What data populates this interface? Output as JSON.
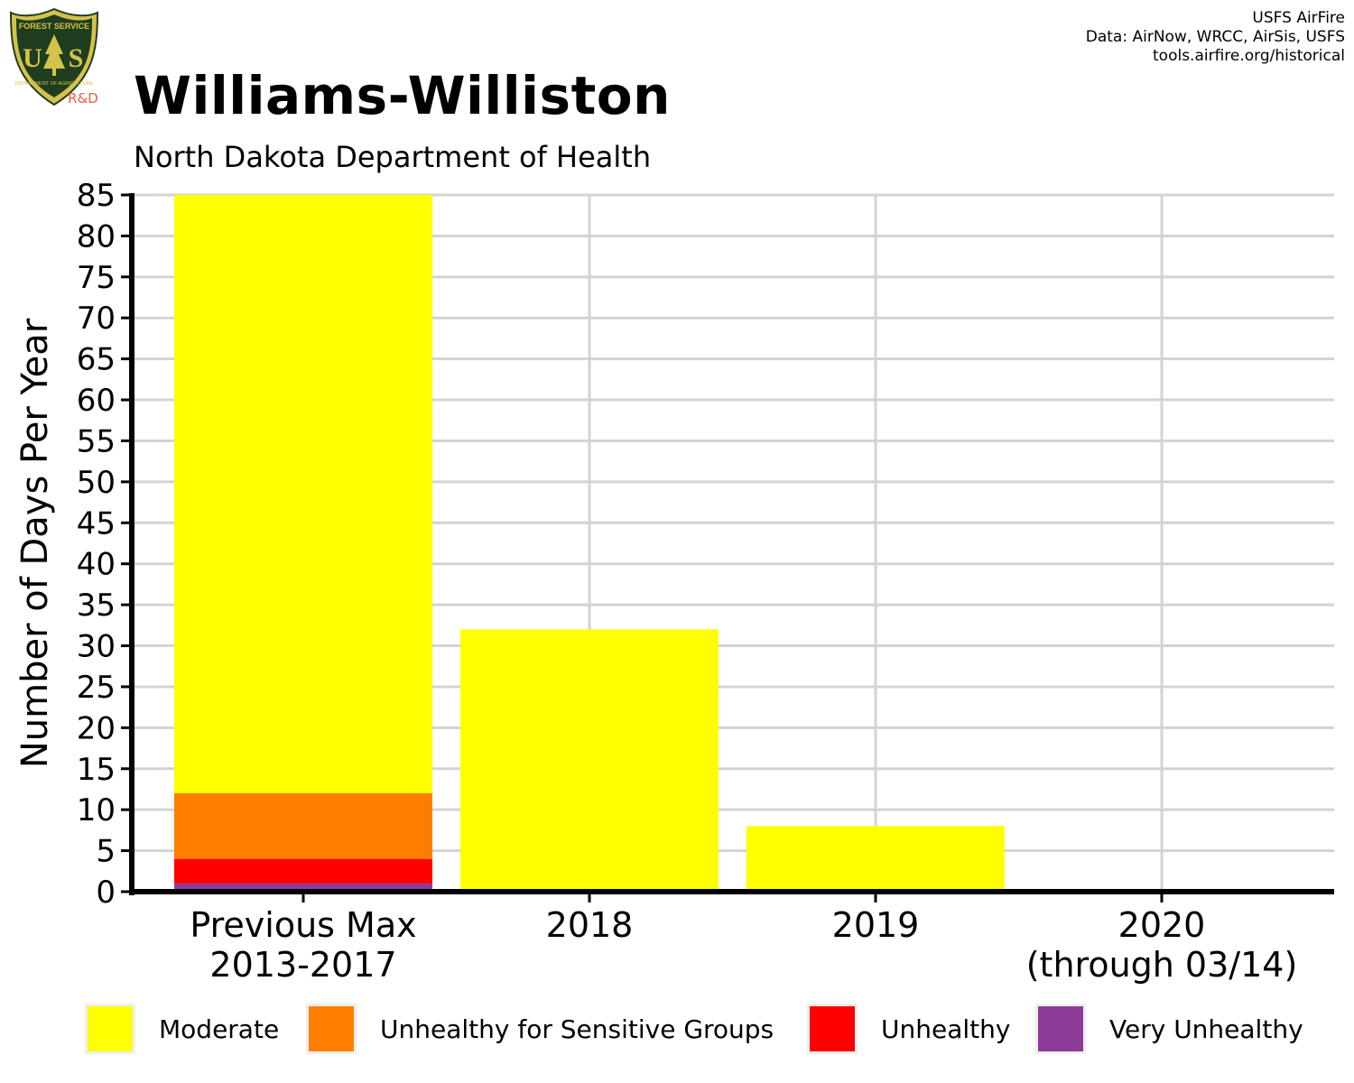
{
  "header": {
    "title": "Williams-Williston",
    "subtitle": "North Dakota Department of Health",
    "credits": [
      "USFS AirFire",
      "Data: AirNow, WRCC, AirSis, USFS",
      "tools.airfire.org/historical"
    ]
  },
  "logo": {
    "top_text": "FOREST SERVICE",
    "letters_left": "U",
    "letters_right": "S",
    "bottom_text": "DEPARTMENT OF AGRICULTURE",
    "tag": "R&D",
    "colors": {
      "shield": "#1f3d1f",
      "gold": "#d4c24a",
      "tag": "#e86040"
    }
  },
  "chart_data": {
    "type": "bar",
    "stacked": true,
    "ylabel": "Number of Days Per Year",
    "xlabel": "",
    "ylim": [
      0,
      85
    ],
    "yticks": [
      0,
      5,
      10,
      15,
      20,
      25,
      30,
      35,
      40,
      45,
      50,
      55,
      60,
      65,
      70,
      75,
      80,
      85
    ],
    "grid": true,
    "legend_position": "bottom",
    "categories": [
      [
        "Previous Max",
        "2013-2017"
      ],
      [
        "2018"
      ],
      [
        "2019"
      ],
      [
        "2020",
        "(through 03/14)"
      ]
    ],
    "series": [
      {
        "name": "Very Unhealthy",
        "color": "#8e3b97",
        "values": [
          1,
          0,
          0,
          0
        ]
      },
      {
        "name": "Unhealthy",
        "color": "#ff0000",
        "values": [
          3,
          0,
          0,
          0
        ]
      },
      {
        "name": "Unhealthy for Sensitive Groups",
        "color": "#ff7e00",
        "values": [
          8,
          0,
          0,
          0
        ]
      },
      {
        "name": "Moderate",
        "color": "#ffff00",
        "values": [
          73,
          32,
          8,
          0
        ]
      }
    ],
    "legend": [
      {
        "label": "Moderate",
        "color": "#ffff00"
      },
      {
        "label": "Unhealthy for Sensitive Groups",
        "color": "#ff7e00"
      },
      {
        "label": "Unhealthy",
        "color": "#ff0000"
      },
      {
        "label": "Very Unhealthy",
        "color": "#8e3b97"
      }
    ]
  }
}
